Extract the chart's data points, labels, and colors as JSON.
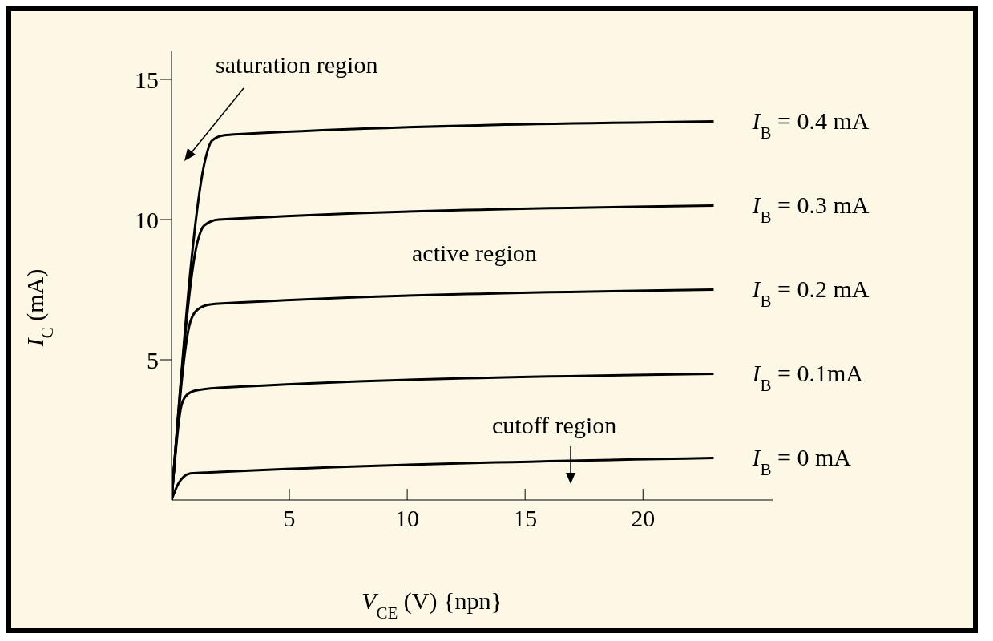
{
  "chart_data": {
    "type": "line",
    "xlabel": "V$_{CE}$ (V) {npn}",
    "ylabel": "I$_{C}$ (mA)",
    "series": [
      {
        "name": "I$_{B}$ = 0.4 mA",
        "color": "#000000",
        "x": [
          0,
          1.45,
          1.7,
          2.2,
          3,
          23
        ],
        "values": [
          0,
          12.2,
          12.8,
          13,
          13.05,
          13.5
        ]
      },
      {
        "name": "I$_{B}$ = 0.3 mA",
        "color": "#000000",
        "x": [
          0,
          1.1,
          1.4,
          2,
          23
        ],
        "values": [
          0,
          9.2,
          9.8,
          10,
          10.5
        ]
      },
      {
        "name": "I$_{B}$ = 0.2 mA",
        "color": "#000000",
        "x": [
          0,
          0.75,
          1,
          1.5,
          2,
          23
        ],
        "values": [
          0,
          6.2,
          6.7,
          6.95,
          7,
          7.5
        ]
      },
      {
        "name": "I$_{B}$ = 0.1mA",
        "color": "#000000",
        "x": [
          0,
          0.4,
          0.6,
          1,
          2,
          23
        ],
        "values": [
          0,
          3.3,
          3.7,
          3.9,
          4,
          4.5
        ]
      },
      {
        "name": "I$_{B}$ = 0 mA",
        "color": "#000000",
        "x": [
          0,
          0.3,
          0.8,
          2,
          23
        ],
        "values": [
          0,
          0.6,
          0.95,
          1,
          1.5
        ]
      }
    ],
    "annotations": [
      "saturation region",
      "active region",
      "cutoff region"
    ],
    "xlim": [
      0,
      25.5
    ],
    "ylim": [
      0,
      16
    ],
    "xticks": [
      5,
      10,
      15,
      20
    ],
    "yticks": [
      5,
      10,
      15
    ],
    "grid": false,
    "legend": false,
    "marker": "none",
    "line_style": "solid"
  }
}
